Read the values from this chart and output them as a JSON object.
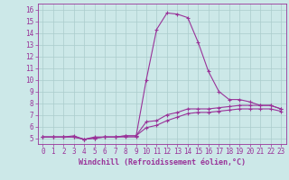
{
  "x": [
    0,
    1,
    2,
    3,
    4,
    5,
    6,
    7,
    8,
    9,
    10,
    11,
    12,
    13,
    14,
    15,
    16,
    17,
    18,
    19,
    20,
    21,
    22,
    23
  ],
  "line1": [
    5.1,
    5.1,
    5.1,
    5.2,
    4.9,
    5.1,
    5.1,
    5.1,
    5.1,
    5.1,
    10.0,
    14.3,
    15.7,
    15.6,
    15.3,
    13.2,
    10.7,
    9.0,
    8.3,
    8.3,
    8.1,
    7.8,
    7.8,
    7.5
  ],
  "line2": [
    5.1,
    5.1,
    5.1,
    5.1,
    4.9,
    5.0,
    5.1,
    5.1,
    5.2,
    5.2,
    6.4,
    6.5,
    7.0,
    7.2,
    7.5,
    7.5,
    7.5,
    7.6,
    7.7,
    7.8,
    7.8,
    7.8,
    7.8,
    7.5
  ],
  "line3": [
    5.1,
    5.1,
    5.1,
    5.1,
    4.9,
    5.0,
    5.1,
    5.1,
    5.2,
    5.2,
    5.9,
    6.1,
    6.5,
    6.8,
    7.1,
    7.2,
    7.2,
    7.3,
    7.4,
    7.5,
    7.5,
    7.5,
    7.5,
    7.3
  ],
  "xlim": [
    -0.5,
    23.5
  ],
  "ylim": [
    4.5,
    16.5
  ],
  "yticks": [
    5,
    6,
    7,
    8,
    9,
    10,
    11,
    12,
    13,
    14,
    15,
    16
  ],
  "xticks": [
    0,
    1,
    2,
    3,
    4,
    5,
    6,
    7,
    8,
    9,
    10,
    11,
    12,
    13,
    14,
    15,
    16,
    17,
    18,
    19,
    20,
    21,
    22,
    23
  ],
  "xlabel": "Windchill (Refroidissement éolien,°C)",
  "line_color": "#993399",
  "bg_color": "#cce8e8",
  "grid_color": "#aacccc",
  "marker": "+",
  "marker_size": 3.5,
  "line_width": 0.8,
  "xlabel_fontsize": 6,
  "tick_fontsize": 5.5
}
